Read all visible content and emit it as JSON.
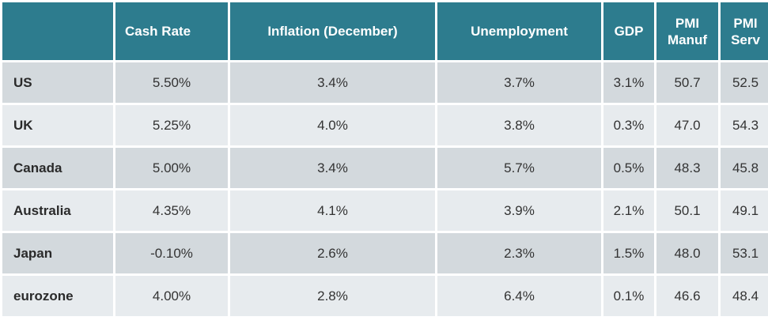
{
  "table": {
    "headers": [
      "",
      "Cash Rate",
      "Inflation (December)",
      "Unemployment",
      "GDP",
      "PMI Manuf",
      "PMI Serv"
    ],
    "rows": [
      {
        "label": "US",
        "values": [
          "5.50%",
          "3.4%",
          "3.7%",
          "3.1%",
          "50.7",
          "52.5"
        ]
      },
      {
        "label": "UK",
        "values": [
          "5.25%",
          "4.0%",
          "3.8%",
          "0.3%",
          "47.0",
          "54.3"
        ]
      },
      {
        "label": "Canada",
        "values": [
          "5.00%",
          "3.4%",
          "5.7%",
          "0.5%",
          "48.3",
          "45.8"
        ]
      },
      {
        "label": "Australia",
        "values": [
          "4.35%",
          "4.1%",
          "3.9%",
          "2.1%",
          "50.1",
          "49.1"
        ]
      },
      {
        "label": "Japan",
        "values": [
          "-0.10%",
          "2.6%",
          "2.3%",
          "1.5%",
          "48.0",
          "53.1"
        ]
      },
      {
        "label": "eurozone",
        "values": [
          "4.00%",
          "2.8%",
          "6.4%",
          "0.1%",
          "46.6",
          "48.4"
        ]
      }
    ]
  },
  "colors": {
    "header_bg": "#2d7c8e",
    "row_dark": "#d3d9dd",
    "row_light": "#e7ebee"
  }
}
